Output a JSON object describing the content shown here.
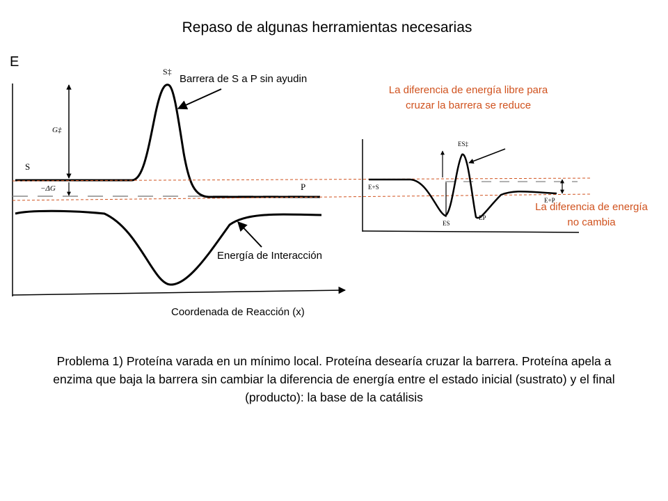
{
  "title": "Repaso de algunas herramientas necesarias",
  "energy_axis_label": "E",
  "left_diagram": {
    "barrier_label": "Barrera de S a P sin ayudin",
    "interaction_label": "Energía de Interacción",
    "x_axis_label": "Coordenada de Reacción (x)",
    "curve_labels": {
      "transition_state": "S‡",
      "free_energy": "G‡",
      "substrate": "S",
      "delta_g": "−ΔG",
      "product": "P"
    }
  },
  "right_diagram": {
    "reduce_label": "La diferencia de energía libre para cruzar la barrera se reduce",
    "no_change_label": "La diferencia de energía no cambia",
    "curve_labels": {
      "es_transition": "ES‡",
      "enzyme_substrate": "E+S",
      "es": "ES",
      "ep": "EP",
      "enzyme_product": "E+P"
    }
  },
  "problem_text": "Problema 1) Proteína varada en un mínimo local. Proteína desearía cruzar la barrera. Proteína apela a enzima que baja la barrera sin cambiar la diferencia de energía entre el estado inicial (sustrato) y el final (producto): la base de la catálisis",
  "colors": {
    "annotation": "#d0521e",
    "curve": "#000000"
  }
}
